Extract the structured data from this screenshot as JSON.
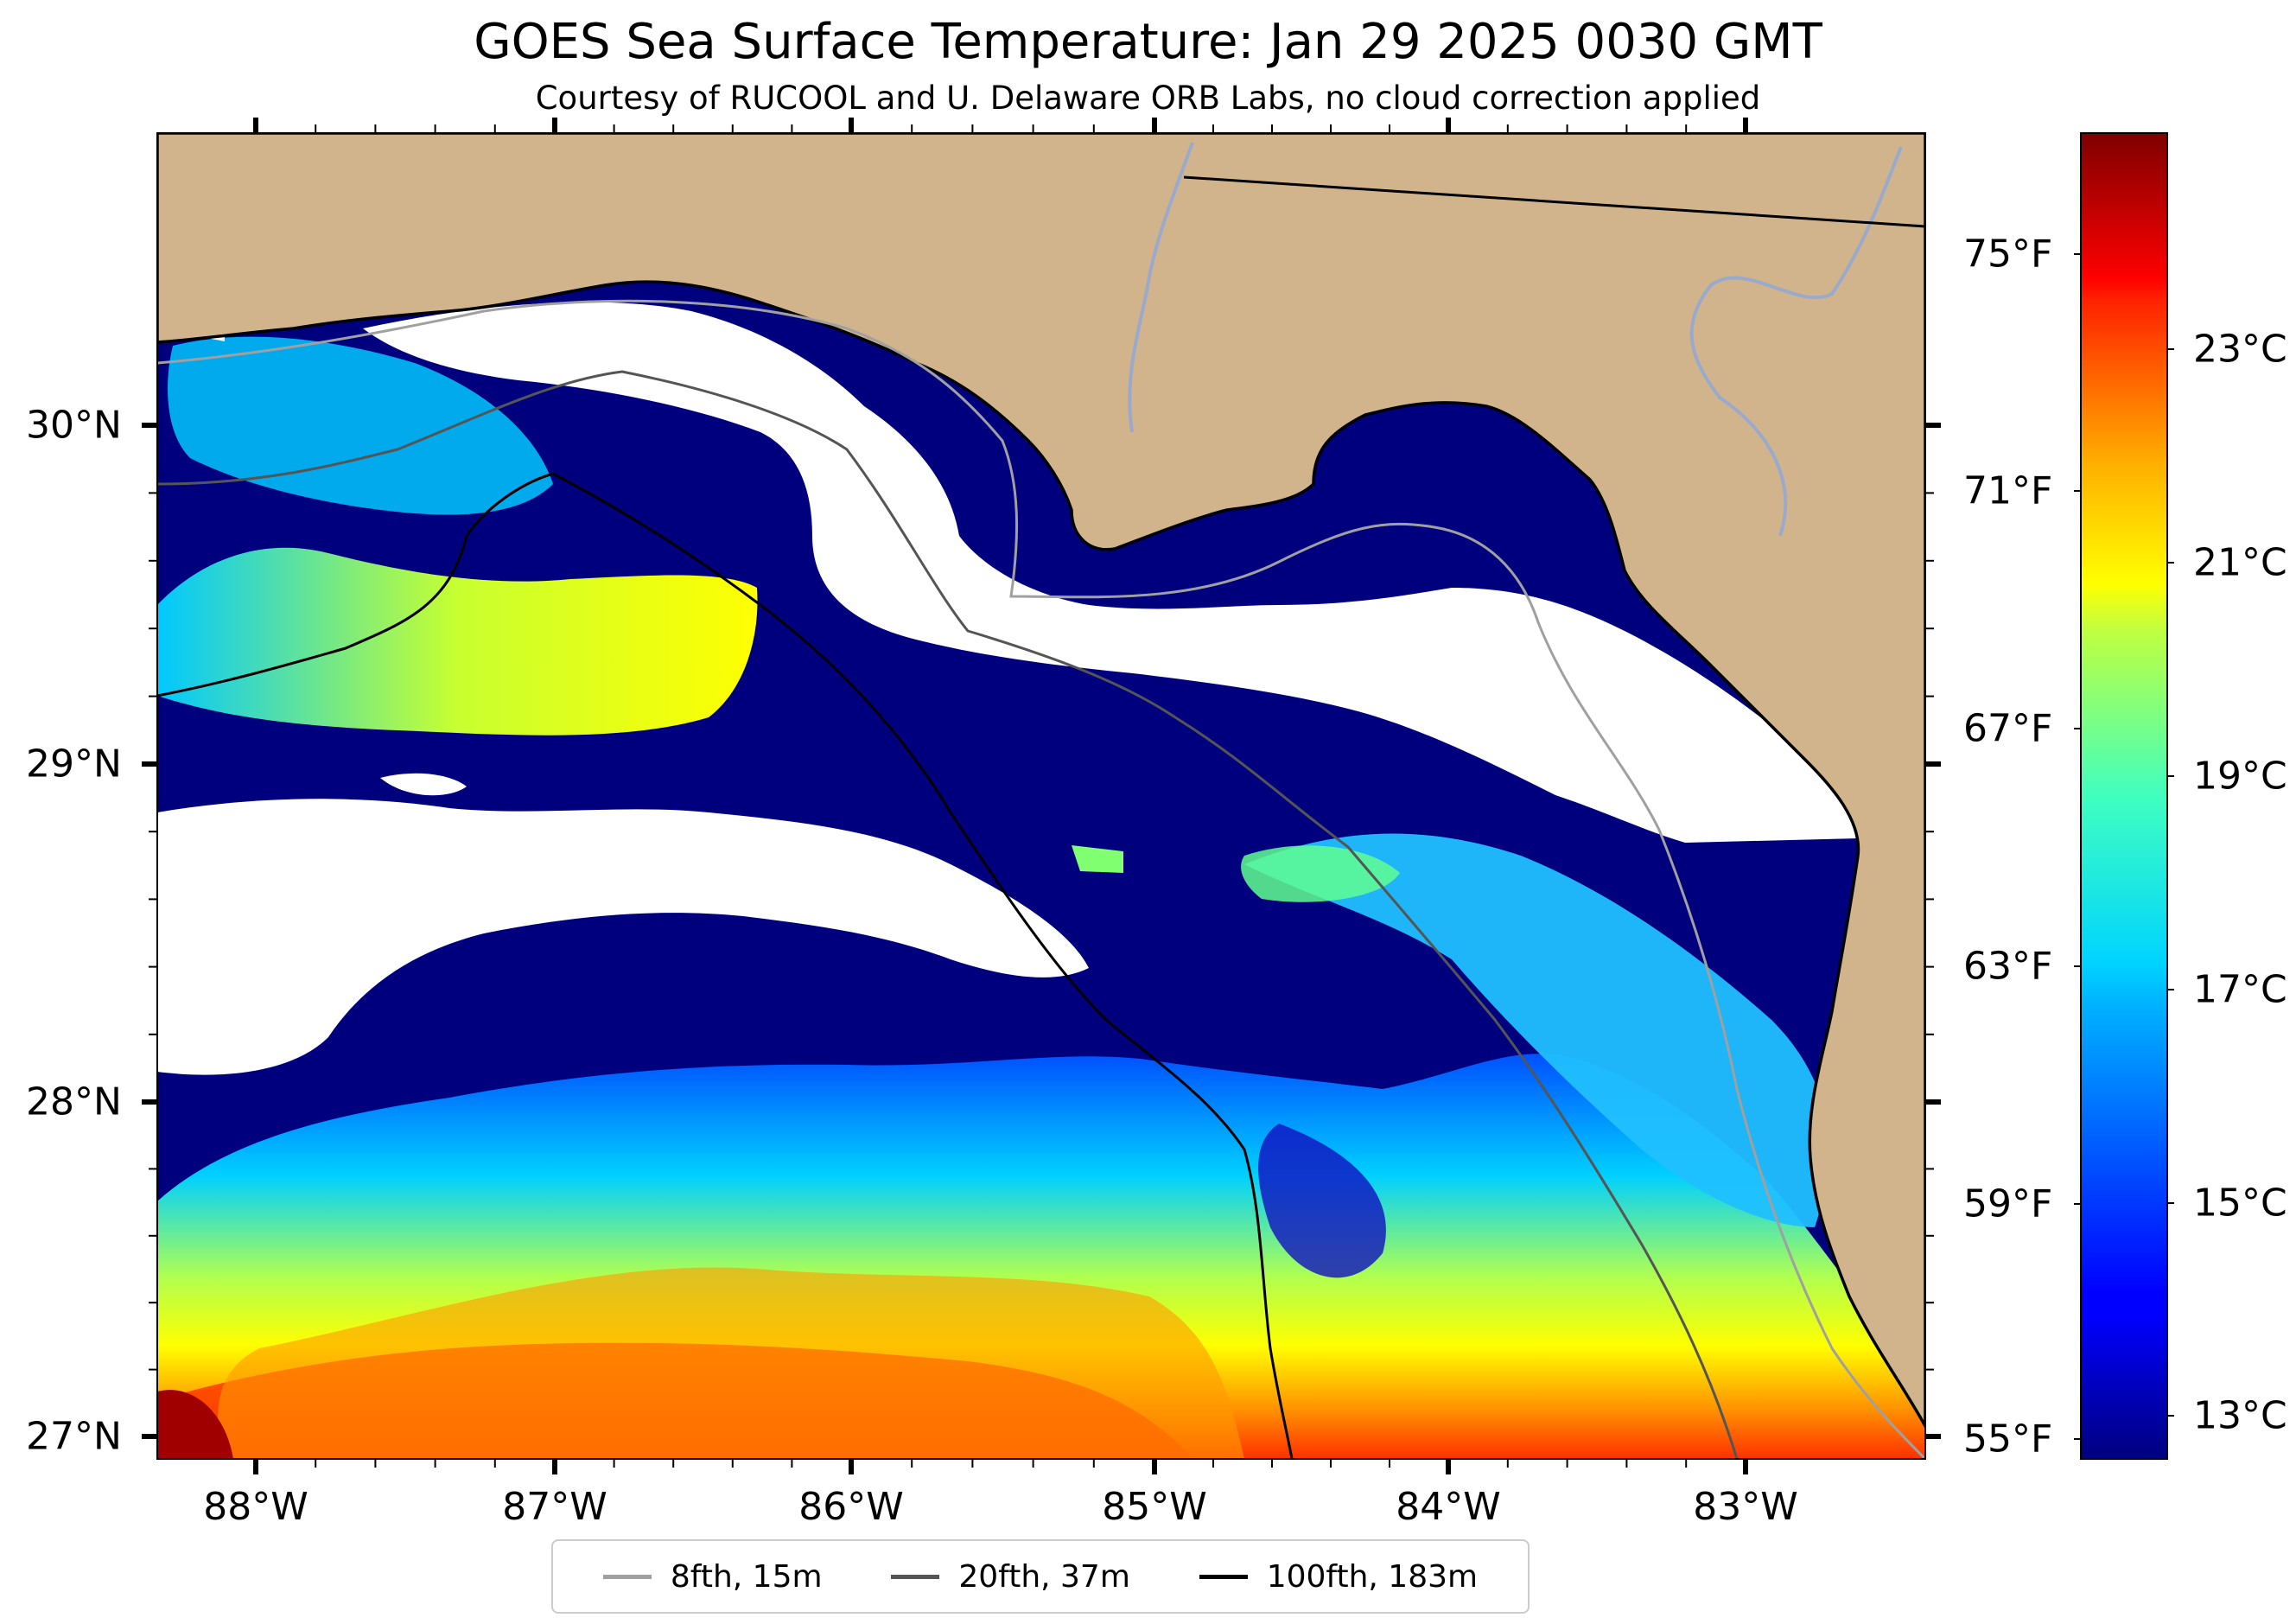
{
  "title": "GOES Sea Surface Temperature: Jan 29 2025 0030 GMT",
  "subtitle": "Courtesy of RUCOOL and U. Delaware ORB Labs, no cloud correction applied",
  "map": {
    "lon_labels": [
      "88°W",
      "87°W",
      "86°W",
      "85°W",
      "84°W",
      "83°W"
    ],
    "lat_labels": [
      "30°N",
      "29°N",
      "28°N",
      "27°N"
    ],
    "colors": {
      "land": "#d2b48c",
      "cloud": "#ffffff",
      "cold_water": "#00007f",
      "coast": "#000000",
      "rivers": "#99aacc"
    }
  },
  "colorbar": {
    "fahrenheit_labels": [
      "75°F",
      "71°F",
      "67°F",
      "63°F",
      "59°F",
      "55°F"
    ],
    "celsius_labels": [
      "23°C",
      "21°C",
      "19°C",
      "17°C",
      "15°C",
      "13°C"
    ],
    "colormap": "jet"
  },
  "legend": [
    {
      "label": "8fth, 15m",
      "color": "#a0a0a0"
    },
    {
      "label": "20fth, 37m",
      "color": "#555555"
    },
    {
      "label": "100fth, 183m",
      "color": "#000000"
    }
  ]
}
